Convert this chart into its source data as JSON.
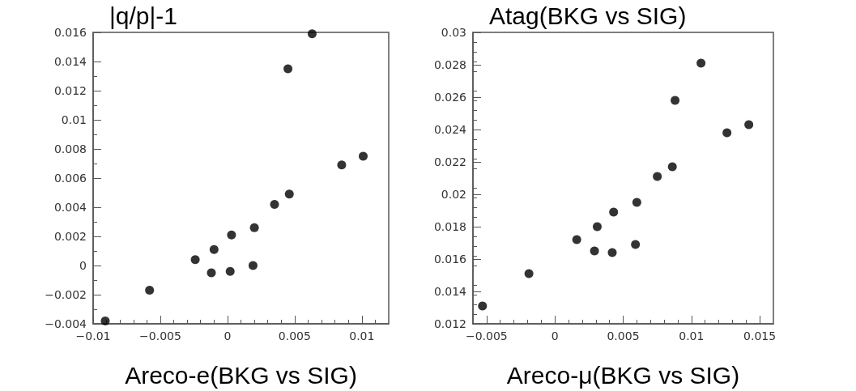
{
  "chart_data": [
    {
      "type": "scatter",
      "ylabel": "|q/p|-1",
      "xlabel": "Areco-e(BKG vs SIG)",
      "marker": "circle",
      "grid": false,
      "color": "#000000",
      "xlim": [
        -0.01,
        0.012
      ],
      "xticks": [
        -0.01,
        -0.005,
        0,
        0.005,
        0.01
      ],
      "ylim": [
        -0.004,
        0.016
      ],
      "yticks": [
        -0.004,
        -0.002,
        0,
        0.002,
        0.004,
        0.006,
        0.008,
        0.01,
        0.012,
        0.014,
        0.016
      ],
      "x": [
        -0.0091,
        -0.0058,
        -0.0024,
        -0.0012,
        -0.001,
        0.0002,
        0.0003,
        0.0019,
        0.002,
        0.0035,
        0.0045,
        0.0046,
        0.0063,
        0.0085,
        0.0101
      ],
      "values": [
        -0.0038,
        -0.0017,
        0.0004,
        -0.0005,
        0.0011,
        -0.0004,
        0.0021,
        0.0,
        0.0026,
        0.0042,
        0.0135,
        0.0049,
        0.0159,
        0.0069,
        0.0075
      ]
    },
    {
      "type": "scatter",
      "ylabel": "Atag(BKG vs SIG)",
      "xlabel": "Areco-μ(BKG vs SIG)",
      "marker": "circle",
      "grid": false,
      "color": "#000000",
      "xlim": [
        -0.006,
        0.016
      ],
      "xticks": [
        -0.005,
        0,
        0.005,
        0.01,
        0.015
      ],
      "ylim": [
        0.012,
        0.03
      ],
      "yticks": [
        0.012,
        0.014,
        0.016,
        0.018,
        0.02,
        0.022,
        0.024,
        0.026,
        0.028,
        0.03
      ],
      "x": [
        -0.0053,
        -0.0019,
        0.0016,
        0.0029,
        0.0031,
        0.0042,
        0.0043,
        0.0059,
        0.006,
        0.0075,
        0.0086,
        0.0088,
        0.0107,
        0.0126,
        0.0142
      ],
      "values": [
        0.0131,
        0.0151,
        0.0172,
        0.0165,
        0.018,
        0.0164,
        0.0189,
        0.0169,
        0.0195,
        0.0211,
        0.0217,
        0.0258,
        0.0281,
        0.0238,
        0.0243
      ]
    }
  ]
}
